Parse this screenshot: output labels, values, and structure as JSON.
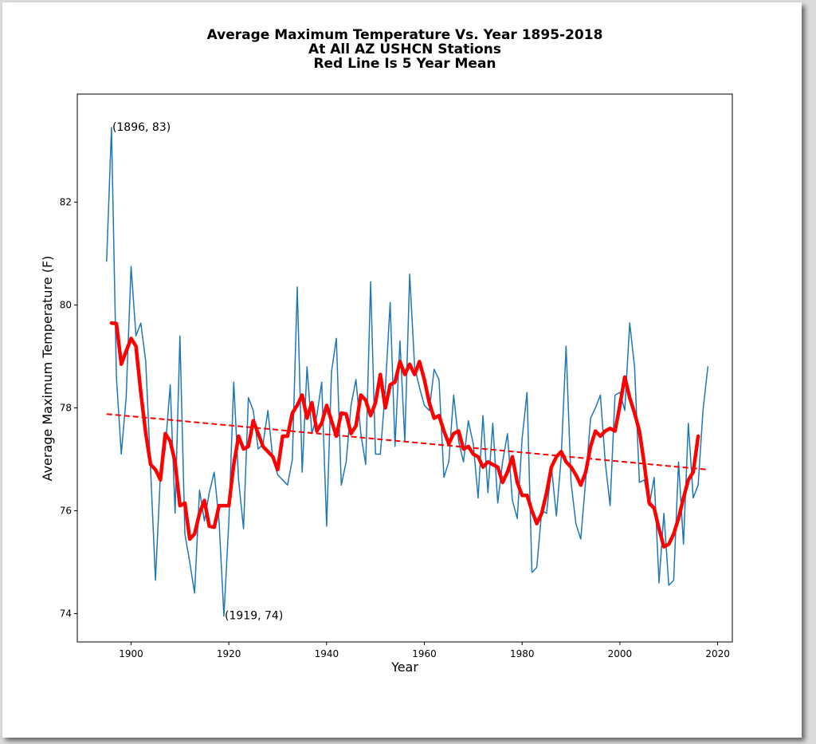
{
  "chart_data": {
    "type": "line",
    "title_lines": [
      "Average Maximum Temperature Vs. Year 1895-2018",
      "At All AZ USHCN Stations",
      "Red Line Is 5 Year Mean"
    ],
    "xlabel": "Year",
    "ylabel": "Average Maximum Temperature (F)",
    "xlim": [
      1889,
      2023
    ],
    "ylim": [
      73.45,
      84.1
    ],
    "x_ticks": [
      1900,
      1920,
      1940,
      1960,
      1980,
      2000,
      2020
    ],
    "y_ticks": [
      74,
      76,
      78,
      80,
      82
    ],
    "grid": false,
    "colors": {
      "annual": "#1f77b4",
      "mean": "#ff0000",
      "trend": "#ff0000"
    },
    "annotations": [
      {
        "label": "(1896, 83)",
        "x": 1896,
        "y": 83.45
      },
      {
        "label": "(1919, 74)",
        "x": 1919,
        "y": 73.95
      }
    ],
    "series": [
      {
        "kind": "annual",
        "x": [
          1895,
          1896,
          1897,
          1898,
          1899,
          1900,
          1901,
          1902,
          1903,
          1904,
          1905,
          1906,
          1907,
          1908,
          1909,
          1910,
          1911,
          1912,
          1913,
          1914,
          1915,
          1916,
          1917,
          1918,
          1919,
          1920,
          1921,
          1922,
          1923,
          1924,
          1925,
          1926,
          1927,
          1928,
          1929,
          1930,
          1931,
          1932,
          1933,
          1934,
          1935,
          1936,
          1937,
          1938,
          1939,
          1940,
          1941,
          1942,
          1943,
          1944,
          1945,
          1946,
          1947,
          1948,
          1949,
          1950,
          1951,
          1952,
          1953,
          1954,
          1955,
          1956,
          1957,
          1958,
          1959,
          1960,
          1961,
          1962,
          1963,
          1964,
          1965,
          1966,
          1967,
          1968,
          1969,
          1970,
          1971,
          1972,
          1973,
          1974,
          1975,
          1976,
          1977,
          1978,
          1979,
          1980,
          1981,
          1982,
          1983,
          1984,
          1985,
          1986,
          1987,
          1988,
          1989,
          1990,
          1991,
          1992,
          1993,
          1994,
          1995,
          1996,
          1997,
          1998,
          1999,
          2000,
          2001,
          2002,
          2003,
          2004,
          2005,
          2006,
          2007,
          2008,
          2009,
          2010,
          2011,
          2012,
          2013,
          2014,
          2015,
          2016,
          2017,
          2018
        ],
        "values": [
          80.85,
          83.45,
          78.6,
          77.1,
          78.2,
          80.75,
          79.4,
          79.65,
          78.9,
          76.8,
          74.65,
          76.7,
          77.2,
          78.45,
          75.95,
          79.4,
          75.55,
          75.0,
          74.4,
          76.4,
          75.8,
          76.35,
          76.75,
          75.8,
          73.95,
          75.8,
          78.5,
          76.6,
          75.65,
          78.2,
          77.95,
          77.2,
          77.3,
          77.95,
          77.0,
          76.7,
          76.6,
          76.5,
          77.0,
          80.35,
          76.75,
          78.8,
          77.5,
          77.85,
          78.5,
          75.7,
          78.7,
          79.35,
          76.5,
          76.95,
          78.05,
          78.55,
          77.5,
          76.9,
          80.45,
          77.1,
          77.1,
          78.35,
          80.05,
          77.25,
          79.3,
          77.35,
          80.6,
          78.8,
          78.4,
          78.05,
          77.95,
          78.75,
          78.55,
          76.65,
          76.95,
          78.25,
          77.35,
          76.95,
          77.75,
          77.3,
          76.25,
          77.85,
          76.35,
          77.7,
          76.15,
          76.95,
          77.5,
          76.2,
          75.85,
          77.4,
          78.3,
          74.8,
          74.9,
          76.0,
          75.95,
          76.85,
          75.9,
          77.05,
          79.2,
          76.55,
          75.75,
          75.45,
          76.6,
          77.8,
          78.0,
          78.25,
          76.95,
          76.1,
          78.25,
          78.3,
          77.95,
          79.65,
          78.8,
          76.55,
          76.6,
          76.1,
          76.65,
          74.6,
          75.95,
          74.55,
          74.65,
          76.95,
          75.35,
          77.7,
          76.25,
          76.5,
          77.95,
          78.8
        ]
      },
      {
        "kind": "5-year mean",
        "x": [
          1896,
          1897,
          1898,
          1899,
          1900,
          1901,
          1902,
          1903,
          1904,
          1905,
          1906,
          1907,
          1908,
          1909,
          1910,
          1911,
          1912,
          1913,
          1914,
          1915,
          1916,
          1917,
          1918,
          1919,
          1920,
          1921,
          1922,
          1923,
          1924,
          1925,
          1926,
          1927,
          1928,
          1929,
          1930,
          1931,
          1932,
          1933,
          1934,
          1935,
          1936,
          1937,
          1938,
          1939,
          1940,
          1941,
          1942,
          1943,
          1944,
          1945,
          1946,
          1947,
          1948,
          1949,
          1950,
          1951,
          1952,
          1953,
          1954,
          1955,
          1956,
          1957,
          1958,
          1959,
          1960,
          1961,
          1962,
          1963,
          1964,
          1965,
          1966,
          1967,
          1968,
          1969,
          1970,
          1971,
          1972,
          1973,
          1974,
          1975,
          1976,
          1977,
          1978,
          1979,
          1980,
          1981,
          1982,
          1983,
          1984,
          1985,
          1986,
          1987,
          1988,
          1989,
          1990,
          1991,
          1992,
          1993,
          1994,
          1995,
          1996,
          1997,
          1998,
          1999,
          2000,
          2001,
          2002,
          2003,
          2004,
          2005,
          2006,
          2007,
          2008,
          2009,
          2010,
          2011,
          2012,
          2013,
          2014,
          2015,
          2016
        ],
        "values": [
          79.65,
          79.64,
          78.85,
          79.1,
          79.35,
          79.2,
          78.3,
          77.5,
          76.9,
          76.8,
          76.6,
          77.5,
          77.35,
          76.95,
          76.1,
          76.15,
          75.45,
          75.55,
          75.95,
          76.2,
          75.7,
          75.68,
          76.1,
          76.1,
          76.1,
          76.9,
          77.45,
          77.2,
          77.25,
          77.75,
          77.5,
          77.25,
          77.15,
          77.05,
          76.8,
          77.45,
          77.45,
          77.9,
          78.05,
          78.25,
          77.8,
          78.1,
          77.55,
          77.7,
          78.05,
          77.75,
          77.45,
          77.9,
          77.88,
          77.5,
          77.65,
          78.25,
          78.15,
          77.85,
          78.1,
          78.65,
          78.0,
          78.45,
          78.5,
          78.9,
          78.65,
          78.85,
          78.65,
          78.9,
          78.55,
          78.1,
          77.8,
          77.85,
          77.55,
          77.3,
          77.5,
          77.55,
          77.2,
          77.25,
          77.1,
          77.05,
          76.85,
          76.95,
          76.9,
          76.85,
          76.55,
          76.75,
          77.05,
          76.55,
          76.3,
          76.3,
          76.0,
          75.75,
          75.95,
          76.35,
          76.85,
          77.05,
          77.15,
          76.95,
          76.85,
          76.7,
          76.5,
          76.75,
          77.25,
          77.55,
          77.45,
          77.55,
          77.6,
          77.55,
          78.05,
          78.6,
          78.2,
          77.9,
          77.55,
          76.9,
          76.15,
          76.05,
          75.65,
          75.3,
          75.35,
          75.55,
          75.85,
          76.25,
          76.6,
          76.75,
          77.45
        ]
      },
      {
        "kind": "trend",
        "x": [
          1895,
          2018
        ],
        "values": [
          77.88,
          76.8
        ]
      }
    ]
  }
}
